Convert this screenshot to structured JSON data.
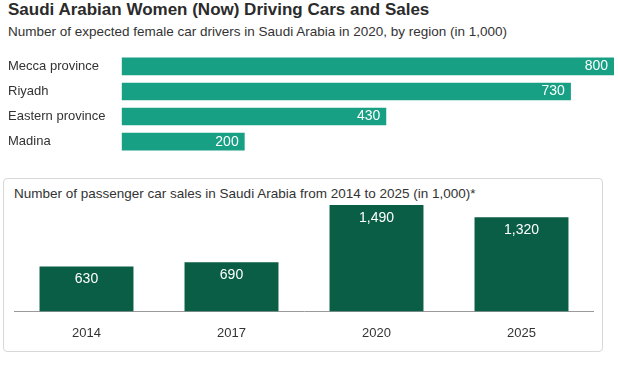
{
  "header": {
    "title": "Saudi Arabian Women (Now) Driving Cars and Sales"
  },
  "chart_data": [
    {
      "type": "bar",
      "title": "Number of expected female car drivers in Saudi Arabia in 2020, by region (in 1,000)",
      "orientation": "horizontal",
      "categories": [
        "Mecca province",
        "Riyadh",
        "Eastern province",
        "Madina"
      ],
      "values": [
        800,
        730,
        430,
        200
      ],
      "color": "#17a084",
      "xlim": [
        0,
        800
      ],
      "data_labels": true,
      "tick_labels": "y",
      "grid": false
    },
    {
      "type": "bar",
      "title": "Number of passenger car sales in Saudi Arabia from 2014 to 2025 (in 1,000)*",
      "categories": [
        "2014",
        "2017",
        "2020",
        "2025"
      ],
      "values": [
        630,
        690,
        1490,
        1320
      ],
      "value_labels": [
        "630",
        "690",
        "1,490",
        "1,320"
      ],
      "color": "#0b5e46",
      "ylim": [
        0,
        1490
      ],
      "data_labels": true,
      "tick_labels": "x",
      "grid": false
    }
  ]
}
